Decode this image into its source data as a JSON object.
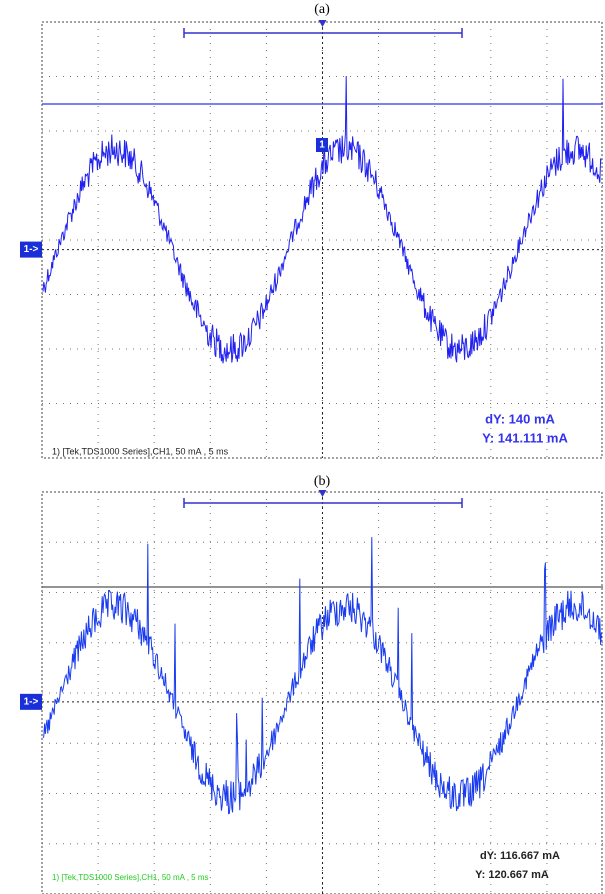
{
  "panels": [
    {
      "label": "(a)",
      "channel_marker": "1->",
      "cursor_marker": "1",
      "footer": "1) [Tek,TDS1000 Series],CH1, 50 mA , 5 ms",
      "readouts": {
        "dy": "dY: 140 mA",
        "y": "Y: 141.111 mA"
      }
    },
    {
      "label": "(b)",
      "channel_marker": "1->",
      "footer": "1) [Tek,TDS1000 Series],CH1, 50 mA , 5 ms",
      "readouts": {
        "dy": "dY: 116.667 mA",
        "y": "Y: 120.667 mA"
      }
    }
  ]
}
